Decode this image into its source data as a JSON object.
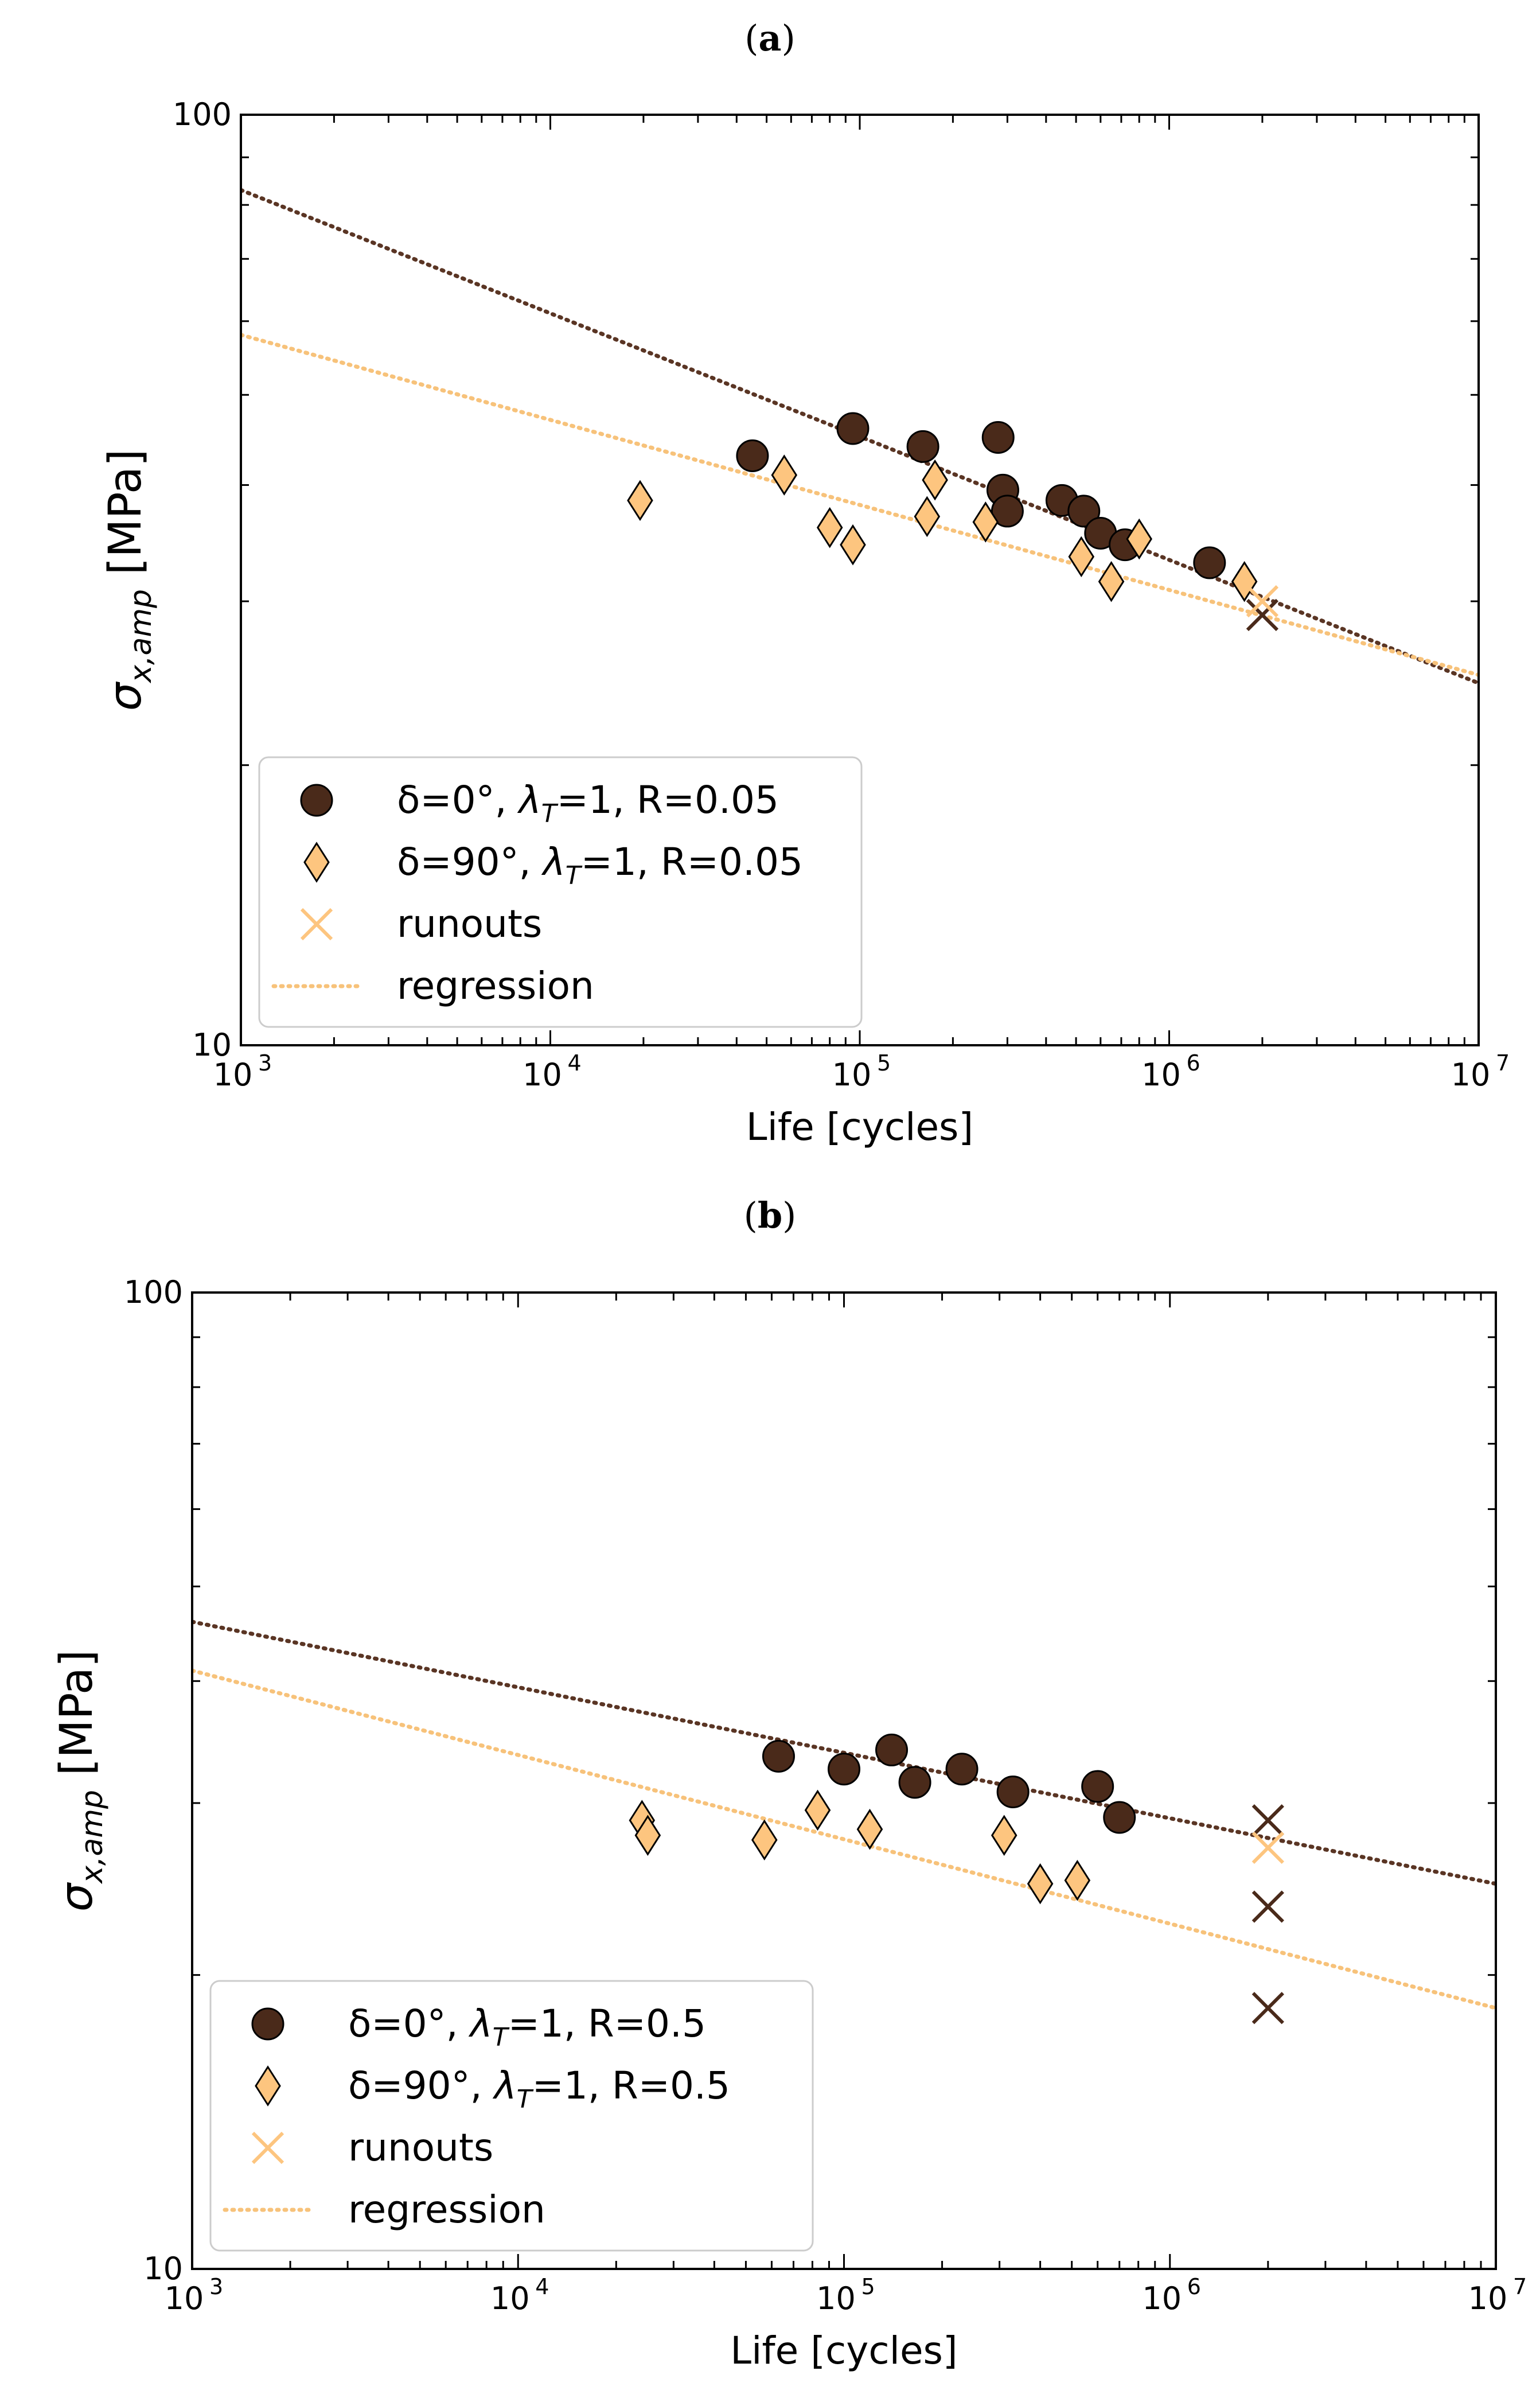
{
  "panels": [
    {
      "label_open": "(",
      "label_letter": "a",
      "label_close": ")"
    },
    {
      "label_open": "(",
      "label_letter": "b",
      "label_close": ")"
    }
  ],
  "colors": {
    "dark": "#4a2a1a",
    "light": "#fdc57f",
    "light_regression": "#f7c27a",
    "dark_regression": "#5a3524",
    "axis": "#000000"
  },
  "chart_data": [
    {
      "type": "scatter",
      "title": "(a)",
      "xlabel": "Life [cycles]",
      "ylabel": "σx,amp [MPa]",
      "xscale": "log",
      "yscale": "log",
      "xlim": [
        1000,
        10000000
      ],
      "ylim": [
        10,
        100
      ],
      "x_ticks": [
        {
          "value": 1000,
          "base": "10",
          "exp": "3"
        },
        {
          "value": 10000,
          "base": "10",
          "exp": "4"
        },
        {
          "value": 100000,
          "base": "10",
          "exp": "5"
        },
        {
          "value": 1000000,
          "base": "10",
          "exp": "6"
        },
        {
          "value": 10000000,
          "base": "10",
          "exp": "7"
        }
      ],
      "y_ticks": [
        {
          "value": 100,
          "label": "100"
        },
        {
          "value": 10,
          "label": "10"
        }
      ],
      "legend_position": "bottom-left",
      "legend": [
        {
          "kind": "circle",
          "prefix": "δ=0°, ",
          "lambda": "λ",
          "sub": "T",
          "suffix": "=1, R=0.05"
        },
        {
          "kind": "diamond",
          "prefix": "δ=90°, ",
          "lambda": "λ",
          "sub": "T",
          "suffix": "=1, R=0.05"
        },
        {
          "kind": "cross",
          "text": "runouts"
        },
        {
          "kind": "dotted",
          "text": "regression"
        }
      ],
      "series": [
        {
          "name": "δ=0°, λT=1, R=0.05",
          "marker": "circle",
          "points": [
            [
              45000,
              43
            ],
            [
              95000,
              46
            ],
            [
              160000,
              44
            ],
            [
              280000,
              45
            ],
            [
              290000,
              39.5
            ],
            [
              300000,
              37.5
            ],
            [
              450000,
              38.5
            ],
            [
              530000,
              37.5
            ],
            [
              600000,
              35.5
            ],
            [
              720000,
              34.5
            ],
            [
              1350000,
              33
            ]
          ]
        },
        {
          "name": "δ=90°, λT=1, R=0.05",
          "marker": "diamond",
          "points": [
            [
              19500,
              38.5
            ],
            [
              57000,
              41
            ],
            [
              80000,
              36
            ],
            [
              95000,
              34.5
            ],
            [
              165000,
              37
            ],
            [
              175000,
              40.5
            ],
            [
              255000,
              36.5
            ],
            [
              520000,
              33.5
            ],
            [
              650000,
              31.5
            ],
            [
              800000,
              35
            ],
            [
              1750000,
              31.5
            ]
          ]
        },
        {
          "name": "runouts (δ=0°)",
          "marker": "cross",
          "color_key": "dark",
          "points": [
            [
              2000000,
              29
            ]
          ]
        },
        {
          "name": "runouts (δ=90°)",
          "marker": "cross",
          "color_key": "light",
          "points": [
            [
              2000000,
              30
            ]
          ]
        }
      ],
      "regressions": [
        {
          "name": "δ=0° regression",
          "color_key": "dark_regression",
          "points": [
            [
              1000,
              83
            ],
            [
              10000000,
              24.5
            ]
          ]
        },
        {
          "name": "δ=90° regression",
          "color_key": "light_regression",
          "points": [
            [
              1000,
              58
            ],
            [
              10000000,
              25
            ]
          ]
        }
      ]
    },
    {
      "type": "scatter",
      "title": "(b)",
      "xlabel": "Life [cycles]",
      "ylabel": "σx,amp [MPa]",
      "xscale": "log",
      "yscale": "log",
      "xlim": [
        1000,
        10000000
      ],
      "ylim": [
        10,
        100
      ],
      "x_ticks": [
        {
          "value": 1000,
          "base": "10",
          "exp": "3"
        },
        {
          "value": 10000,
          "base": "10",
          "exp": "4"
        },
        {
          "value": 100000,
          "base": "10",
          "exp": "5"
        },
        {
          "value": 1000000,
          "base": "10",
          "exp": "6"
        },
        {
          "value": 10000000,
          "base": "10",
          "exp": "7"
        }
      ],
      "y_ticks": [
        {
          "value": 100,
          "label": "100"
        },
        {
          "value": 10,
          "label": "10"
        }
      ],
      "legend_position": "bottom-left",
      "legend": [
        {
          "kind": "circle",
          "prefix": "δ=0°, ",
          "lambda": "λ",
          "sub": "T",
          "suffix": "=1, R=0.5"
        },
        {
          "kind": "diamond",
          "prefix": "δ=90°, ",
          "lambda": "λ",
          "sub": "T",
          "suffix": "=1, R=0.5"
        },
        {
          "kind": "cross",
          "text": "runouts"
        },
        {
          "kind": "dotted",
          "text": "regression"
        }
      ],
      "series": [
        {
          "name": "δ=0°, λT=1, R=0.5",
          "marker": "circle",
          "points": [
            [
              63000,
              33.5
            ],
            [
              100000,
              32.5
            ],
            [
              140000,
              34
            ],
            [
              165000,
              31.5
            ],
            [
              230000,
              32.5
            ],
            [
              330000,
              30.8
            ],
            [
              600000,
              31.2
            ],
            [
              700000,
              29
            ]
          ]
        },
        {
          "name": "δ=90°, λT=1, R=0.5",
          "marker": "diamond",
          "points": [
            [
              24000,
              28.8
            ],
            [
              25000,
              27.8
            ],
            [
              57000,
              27.5
            ],
            [
              83000,
              29.5
            ],
            [
              120000,
              28.2
            ],
            [
              310000,
              27.8
            ],
            [
              400000,
              24.8
            ],
            [
              520000,
              25
            ]
          ]
        },
        {
          "name": "runouts (δ=0°)",
          "marker": "cross",
          "color_key": "dark",
          "points": [
            [
              2000000,
              28.8
            ],
            [
              2000000,
              23.5
            ],
            [
              2000000,
              18.5
            ]
          ]
        },
        {
          "name": "runouts (δ=90°)",
          "marker": "cross",
          "color_key": "light",
          "points": [
            [
              2000000,
              27
            ]
          ]
        }
      ],
      "regressions": [
        {
          "name": "δ=0° regression",
          "color_key": "dark_regression",
          "points": [
            [
              1000,
              46
            ],
            [
              10000000,
              24.8
            ]
          ]
        },
        {
          "name": "δ=90° regression",
          "color_key": "light_regression",
          "points": [
            [
              1000,
              41
            ],
            [
              10000000,
              18.5
            ]
          ]
        }
      ]
    }
  ]
}
